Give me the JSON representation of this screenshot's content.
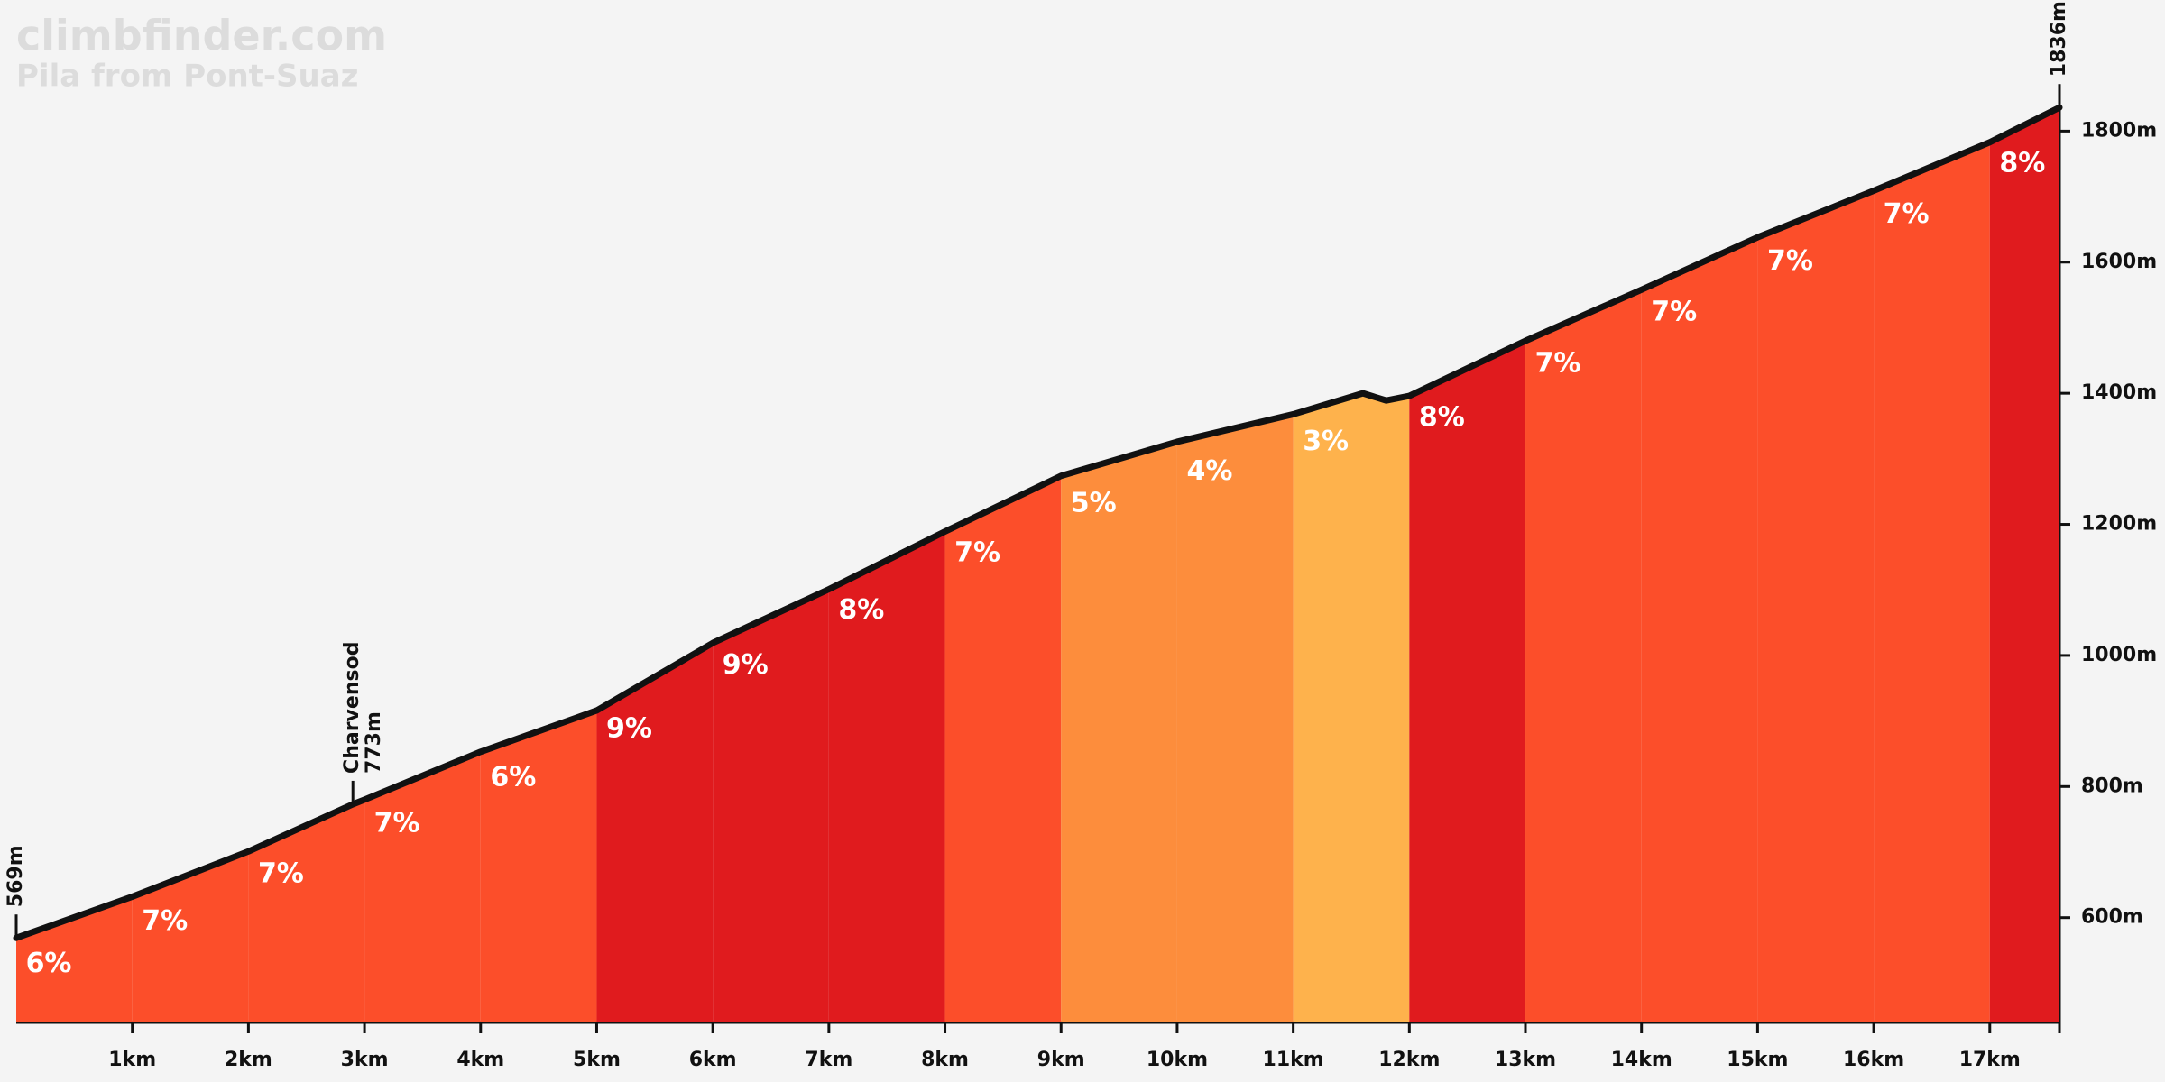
{
  "chart_data": {
    "type": "area",
    "site": "climbfinder.com",
    "title": "Pila from Pont-Suaz",
    "x": [
      0,
      1,
      2,
      2.9,
      3,
      4,
      5,
      6,
      7,
      8,
      9,
      10,
      11,
      11.6,
      11.8,
      12,
      13,
      14,
      15,
      16,
      17,
      17.6
    ],
    "values": [
      569,
      632,
      701,
      773,
      780,
      853,
      916,
      1019,
      1101,
      1189,
      1274,
      1326,
      1368,
      1400,
      1389,
      1396,
      1480,
      1558,
      1638,
      1709,
      1783,
      1836
    ],
    "line_color": "#111111",
    "segments": {
      "bins": [
        0,
        1,
        2,
        3,
        4,
        5,
        6,
        7,
        8,
        9,
        10,
        11,
        12,
        13,
        14,
        15,
        16,
        17,
        17.6
      ],
      "values": [
        6,
        7,
        7,
        7,
        6,
        9,
        9,
        8,
        7,
        5,
        4,
        3,
        8,
        7,
        7,
        7,
        7,
        8
      ],
      "value_labels": [
        "6%",
        "7%",
        "7%",
        "7%",
        "6%",
        "9%",
        "9%",
        "8%",
        "7%",
        "5%",
        "4%",
        "3%",
        "8%",
        "7%",
        "7%",
        "7%",
        "7%",
        "8%"
      ],
      "colors": [
        "#fc4e2a",
        "#fc4e2a",
        "#fc4e2a",
        "#fc4e2a",
        "#fc4e2a",
        "#e01b1e",
        "#e01b1e",
        "#e01b1e",
        "#fc4e2a",
        "#fd8d3c",
        "#fd8d3c",
        "#feb24c",
        "#e01b1e",
        "#fc4e2a",
        "#fc4e2a",
        "#fc4e2a",
        "#fc4e2a",
        "#e01b1e"
      ]
    },
    "annotations": [
      {
        "x": 0,
        "value": 569,
        "label": "569m"
      },
      {
        "x": 2.9,
        "value": 773,
        "name": "Charvensod",
        "label": "773m"
      },
      {
        "x": 17.6,
        "value": 1836,
        "label": "1836m"
      }
    ],
    "xlim": [
      0,
      17.6
    ],
    "ylim": [
      440,
      2000
    ],
    "xticks": [
      {
        "value": 1,
        "label": "1km"
      },
      {
        "value": 2,
        "label": "2km"
      },
      {
        "value": 3,
        "label": "3km"
      },
      {
        "value": 4,
        "label": "4km"
      },
      {
        "value": 5,
        "label": "5km"
      },
      {
        "value": 6,
        "label": "6km"
      },
      {
        "value": 7,
        "label": "7km"
      },
      {
        "value": 8,
        "label": "8km"
      },
      {
        "value": 9,
        "label": "9km"
      },
      {
        "value": 10,
        "label": "10km"
      },
      {
        "value": 11,
        "label": "11km"
      },
      {
        "value": 12,
        "label": "12km"
      },
      {
        "value": 13,
        "label": "13km"
      },
      {
        "value": 14,
        "label": "14km"
      },
      {
        "value": 15,
        "label": "15km"
      },
      {
        "value": 16,
        "label": "16km"
      },
      {
        "value": 17,
        "label": "17km"
      }
    ],
    "yticks": [
      {
        "value": 600,
        "label": "600m"
      },
      {
        "value": 800,
        "label": "800m"
      },
      {
        "value": 1000,
        "label": "1000m"
      },
      {
        "value": 1200,
        "label": "1200m"
      },
      {
        "value": 1400,
        "label": "1400m"
      },
      {
        "value": 1600,
        "label": "1600m"
      },
      {
        "value": 1800,
        "label": "1800m"
      }
    ]
  }
}
